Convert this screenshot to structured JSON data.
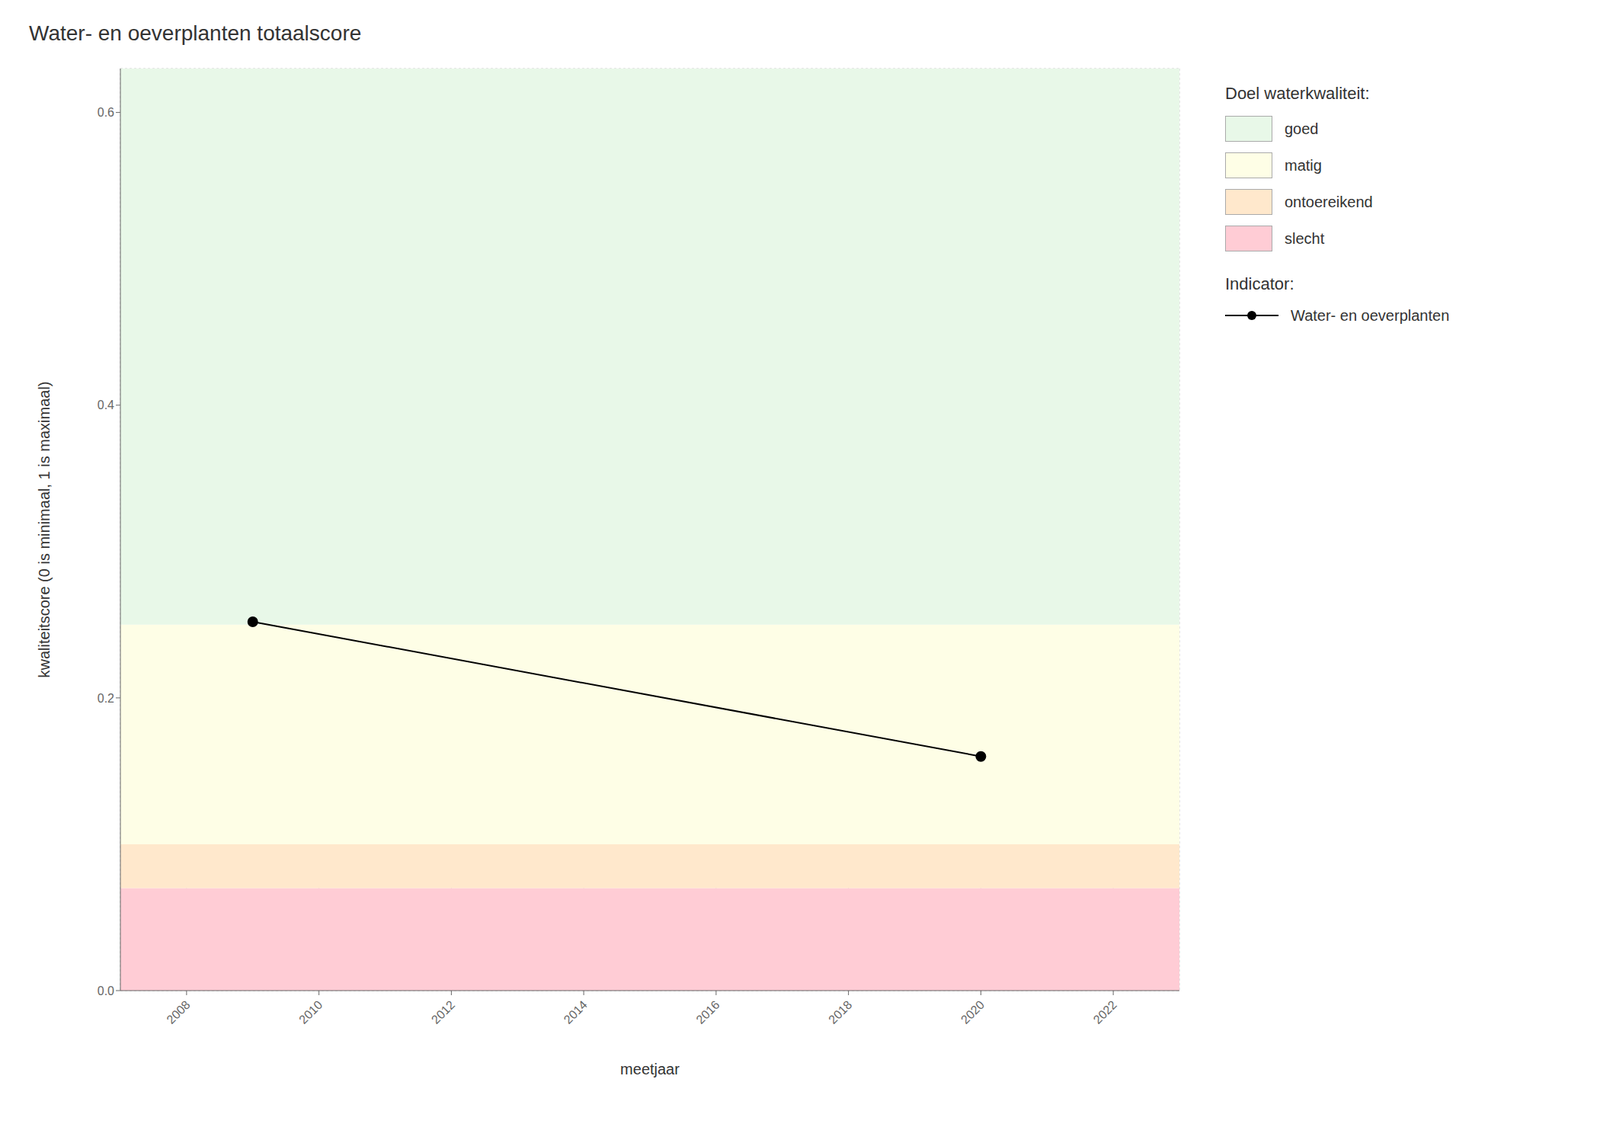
{
  "chart_data": {
    "type": "line",
    "title": "Water- en oeverplanten totaalscore",
    "xlabel": "meetjaar",
    "ylabel": "kwaliteitscore (0 is minimaal, 1 is maximaal)",
    "x": [
      2009,
      2020
    ],
    "series": [
      {
        "name": "Water- en oeverplanten",
        "color": "#000000",
        "values": [
          0.252,
          0.16
        ],
        "marker": "circle",
        "line_style": "solid"
      }
    ],
    "xlim": [
      2007,
      2023
    ],
    "xticks": [
      2008,
      2010,
      2012,
      2014,
      2016,
      2018,
      2020,
      2022
    ],
    "ylim": [
      0,
      0.63
    ],
    "yticks": [
      {
        "value": 0,
        "label": "0.0"
      },
      0.2,
      0.4,
      0.6
    ],
    "grid": true,
    "bands_title": "Doel waterkwaliteit:",
    "bands": [
      {
        "ymin": 0.0,
        "ymax": 0.07,
        "color": "#ffccd5",
        "label": "slecht"
      },
      {
        "ymin": 0.07,
        "ymax": 0.1,
        "color": "#ffe8cc",
        "label": "ontoereikend"
      },
      {
        "ymin": 0.1,
        "ymax": 0.25,
        "color": "#fefee6",
        "label": "matig"
      },
      {
        "ymin": 0.25,
        "ymax": 0.63,
        "color": "#e8f8e8",
        "label": "goed"
      }
    ],
    "series_title": "Indicator:"
  }
}
